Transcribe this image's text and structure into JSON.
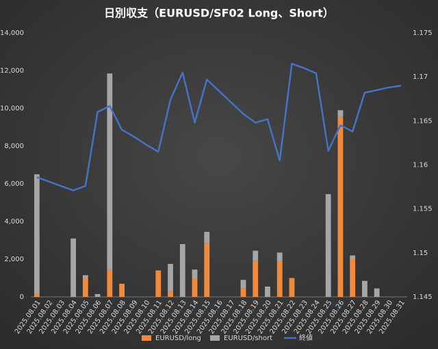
{
  "chart_data": {
    "type": "bar-line",
    "title": "日別収支（EURUSD/SF02 Long、Short）",
    "categories": [
      "2025.08.01",
      "2025.08.02",
      "2025.08.03",
      "2025.08.04",
      "2025.08.05",
      "2025.08.06",
      "2025.08.07",
      "2025.08.08",
      "2025.08.09",
      "2025.08.10",
      "2025.08.11",
      "2025.08.12",
      "2025.08.13",
      "2025.08.14",
      "2025.08.15",
      "2025.08.16",
      "2025.08.17",
      "2025.08.18",
      "2025.08.19",
      "2025.08.20",
      "2025.08.21",
      "2025.08.22",
      "2025.08.23",
      "2025.08.24",
      "2025.08.25",
      "2025.08.26",
      "2025.08.27",
      "2025.08.28",
      "2025.08.29",
      "2025.08.30",
      "2025.08.31"
    ],
    "series": [
      {
        "name": "EURUSD/long",
        "color": "#f28a3c",
        "stacked": true,
        "values": [
          150,
          0,
          0,
          0,
          1000,
          0,
          1450,
          700,
          0,
          0,
          1400,
          300,
          0,
          1000,
          2850,
          0,
          0,
          450,
          1900,
          0,
          1900,
          1000,
          0,
          0,
          0,
          9550,
          2000,
          0,
          0,
          0,
          0
        ]
      },
      {
        "name": "EURUSD/short",
        "color": "#a6a6a6",
        "stacked": true,
        "values": [
          6350,
          0,
          0,
          3100,
          150,
          150,
          10400,
          0,
          0,
          0,
          0,
          1450,
          2800,
          450,
          600,
          0,
          0,
          450,
          550,
          550,
          450,
          0,
          0,
          0,
          5450,
          350,
          200,
          850,
          450,
          0,
          0
        ]
      },
      {
        "name": "終値",
        "color": "#4472c4",
        "axis": "y2",
        "kind": "line",
        "values": [
          1.1586,
          1.1581,
          1.1576,
          1.1571,
          1.1576,
          1.166,
          1.1667,
          1.164,
          1.1632,
          1.1623,
          1.1615,
          1.1674,
          1.1705,
          1.1648,
          1.1697,
          1.1684,
          1.1671,
          1.1658,
          1.1648,
          1.1652,
          1.1605,
          1.1715,
          1.171,
          1.1704,
          1.1616,
          1.1645,
          1.1638,
          1.1682,
          1.1685,
          1.1688,
          1.169
        ]
      }
    ],
    "ylim": [
      0,
      14000
    ],
    "yticks": [
      0,
      {
        "value": 2000,
        "label": "2,000"
      },
      {
        "value": 4000,
        "label": "4,000"
      },
      {
        "value": 6000,
        "label": "6,000"
      },
      {
        "value": 8000,
        "label": "8,000"
      },
      {
        "value": 10000,
        "label": "10,000"
      },
      {
        "value": 12000,
        "label": "12,000"
      },
      {
        "value": 14000,
        "label": "14,000"
      }
    ],
    "y2lim": [
      1.145,
      1.175
    ],
    "y2ticks": [
      1.145,
      1.15,
      1.155,
      1.16,
      1.165,
      1.17,
      1.175
    ],
    "grid": false,
    "legend": "bottom"
  }
}
